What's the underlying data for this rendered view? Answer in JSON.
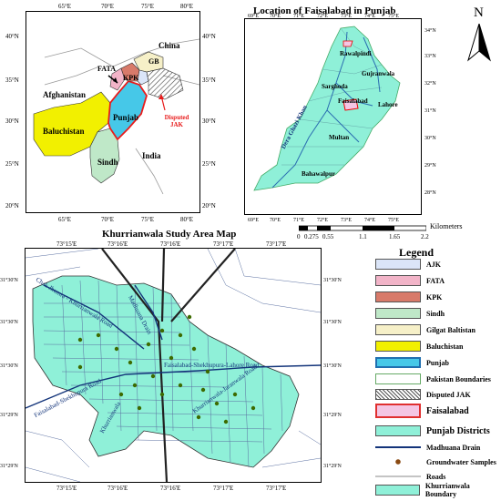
{
  "map_left": {
    "top_ticks": [
      "65°E",
      "70°E",
      "75°E",
      "80°E"
    ],
    "bottom_ticks": [
      "65°E",
      "70°E",
      "75°E",
      "80°E"
    ],
    "left_ticks": [
      "40°N",
      "35°N",
      "30°N",
      "25°N",
      "20°N"
    ],
    "right_ticks": [
      "40°N",
      "35°N",
      "30°N",
      "25°N",
      "20°N"
    ],
    "labels": {
      "china": "China",
      "fata": "FATA",
      "kpk": "KPK",
      "gb": "GB",
      "afghanistan": "Afghanistan",
      "punjab": "Punjab",
      "baluchistan": "Baluchistan",
      "sindh": "Sindh",
      "india": "India",
      "disputed": "Disputed JAK"
    }
  },
  "map_right": {
    "title": "Location of Faisalabad in Punjab",
    "top_ticks": [
      "69°E",
      "70°E",
      "71°E",
      "72°E",
      "73°E",
      "74°E",
      "75°E"
    ],
    "bottom_ticks": [
      "69°E",
      "70°E",
      "71°E",
      "72°E",
      "73°E",
      "74°E",
      "75°E"
    ],
    "right_ticks": [
      "34°N",
      "33°N",
      "32°N",
      "31°N",
      "30°N",
      "29°N",
      "28°N"
    ],
    "cities": {
      "rawalpindi": "Rawalpindi",
      "gujranwala": "Gujranwala",
      "sarghoda": "Sarghoda",
      "faisalabad": "Faisalabad",
      "lahore": "Lahore",
      "multan": "Multan",
      "bahawalpur": "Bahawalpur",
      "dgk": "Dera Ghazi Khan"
    },
    "north_label": "N"
  },
  "scale": {
    "unit": "Kilometers",
    "ticks": [
      "0",
      "0.275",
      "0.55",
      "1.1",
      "1.65",
      "2.2"
    ]
  },
  "map_bottom": {
    "title": "Khurrianwala Study Area Map",
    "top_ticks": [
      "73°15'E",
      "73°16'E",
      "73°16'E",
      "73°17'E",
      "73°17'E"
    ],
    "bottom_ticks": [
      "73°15'E",
      "73°16'E",
      "73°16'E",
      "73°17'E",
      "73°17'E"
    ],
    "left_ticks": [
      "31°30'N",
      "31°30'N",
      "31°30'N",
      "31°29'N",
      "31°29'N"
    ],
    "right_ticks": [
      "31°30'N",
      "31°30'N",
      "31°30'N",
      "31°29'N",
      "31°29'N"
    ],
    "roads": {
      "chak": "Chak Jhumra - Khurrianwala Road",
      "madhuana": "Madhuana Drain",
      "lahore_road": "Faisalabad-Shekhupura-Lahore Road",
      "fsd_shk": "Faisalabad-Shekhupura Road",
      "jaranwala": "Khurrianwala-Jaranwala Road",
      "khurrian": "Khurrianwala"
    }
  },
  "legend": {
    "title": "Legend",
    "items": [
      {
        "label": "AJK",
        "color": "#dbe5f8"
      },
      {
        "label": "FATA",
        "color": "#f2b4c8"
      },
      {
        "label": "KPK",
        "color": "#d87a6a"
      },
      {
        "label": "Sindh",
        "color": "#bfe8c8"
      },
      {
        "label": "Gilgat Baltistan",
        "color": "#f6f0c8"
      },
      {
        "label": "Baluchistan",
        "color": "#f2f000"
      },
      {
        "label": "Punjab",
        "color": "#46c8e8"
      },
      {
        "label": "Pakistan Boundaries",
        "color": "#ffffff"
      },
      {
        "label": "Disputed JAK",
        "color": "hatch"
      },
      {
        "label": "Faisalabad",
        "color": "#f4c6e4"
      },
      {
        "label": "Punjab Districts",
        "color": "#8ff0d8"
      },
      {
        "label": "Madhuana Drain",
        "color": "line"
      },
      {
        "label": "Groundwater Samples",
        "color": "dot"
      },
      {
        "label": "Roads",
        "color": "thin"
      },
      {
        "label": "Khurrianwala Boundary",
        "color": "#8ff0d8"
      }
    ]
  }
}
